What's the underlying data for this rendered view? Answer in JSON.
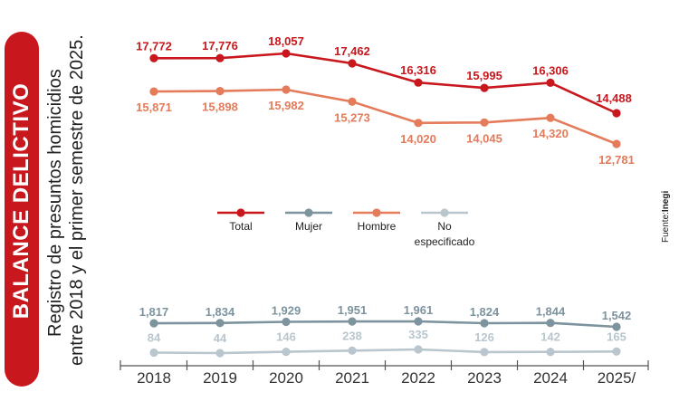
{
  "title": "BALANCE DELICTIVO",
  "subtitle_lines": [
    "Registro de presuntos homicidios",
    "entre 2018 y el primer semestre de 2025."
  ],
  "source": {
    "prefix": "Fuente:",
    "name": "Inegi"
  },
  "colors": {
    "Total": "#c8181e",
    "Mujer": "#7d939e",
    "Hombre": "#e47b5a",
    "No especificado": "#b9c6cd"
  },
  "chart_data": {
    "type": "line",
    "x": [
      "2018",
      "2019",
      "2020",
      "2021",
      "2022",
      "2023",
      "2024",
      "2025/"
    ],
    "series": [
      {
        "name": "Total",
        "values": [
          17772,
          17776,
          18057,
          17462,
          16316,
          15995,
          16306,
          14488
        ],
        "labels": [
          "17,772",
          "17,776",
          "18,057",
          "17,462",
          "16,316",
          "15,995",
          "16,306",
          "14,488"
        ]
      },
      {
        "name": "Hombre",
        "values": [
          15871,
          15898,
          15982,
          15273,
          14020,
          14045,
          14320,
          12781
        ],
        "labels": [
          "15,871",
          "15,898",
          "15,982",
          "15,273",
          "14,020",
          "14,045",
          "14,320",
          "12,781"
        ]
      },
      {
        "name": "Mujer",
        "values": [
          1817,
          1834,
          1929,
          1951,
          1961,
          1824,
          1844,
          1542
        ],
        "labels": [
          "1,817",
          "1,834",
          "1,929",
          "1,951",
          "1,961",
          "1,824",
          "1,844",
          "1,542"
        ]
      },
      {
        "name": "No especificado",
        "values": [
          84,
          44,
          146,
          238,
          335,
          126,
          142,
          165
        ],
        "labels": [
          "84",
          "44",
          "146",
          "238",
          "335",
          "126",
          "142",
          "165"
        ]
      }
    ],
    "legend": [
      {
        "name": "Total",
        "label_lines": [
          "Total"
        ]
      },
      {
        "name": "Mujer",
        "label_lines": [
          "Mujer"
        ]
      },
      {
        "name": "Hombre",
        "label_lines": [
          "Hombre"
        ]
      },
      {
        "name": "No especificado",
        "label_lines": [
          "No",
          "especificado"
        ]
      }
    ],
    "legend_position": "center",
    "grid": false
  }
}
